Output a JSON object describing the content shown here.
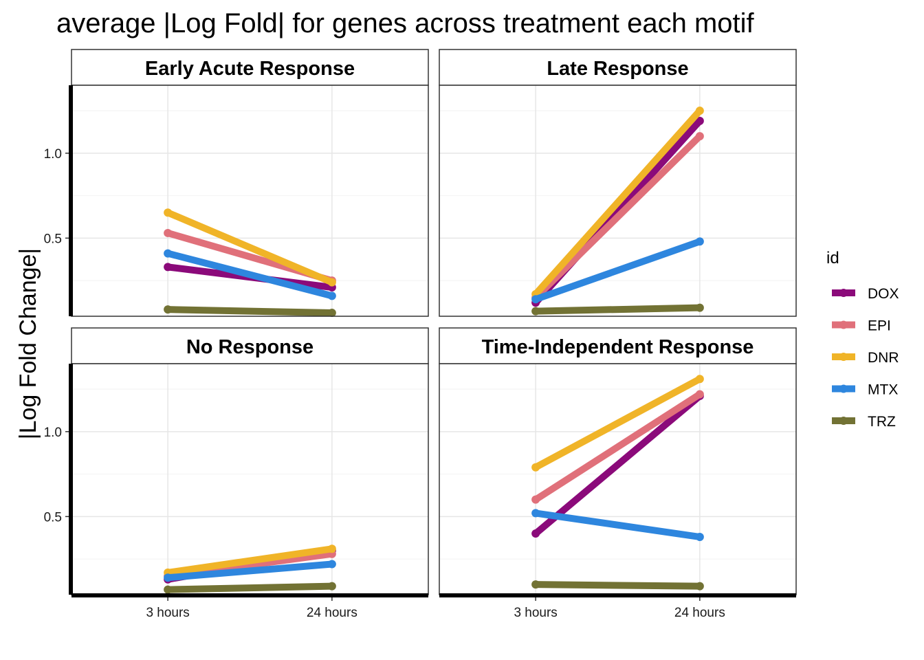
{
  "chart_data": {
    "type": "line",
    "title": "average |Log Fold| for genes across treatment each motif",
    "ylabel": "|Log Fold Change|",
    "xlabel": "",
    "categories": [
      "3 hours",
      "24 hours"
    ],
    "ylim": [
      0.04,
      1.4
    ],
    "yticks": [
      0.5,
      1.0
    ],
    "ytick_labels": [
      "0.5",
      "1.0"
    ],
    "grid": true,
    "legend": {
      "title": "id",
      "position": "right",
      "entries": [
        {
          "name": "DOX",
          "color": "#8B0A7A"
        },
        {
          "name": "EPI",
          "color": "#E0707A"
        },
        {
          "name": "DNR",
          "color": "#F0B428"
        },
        {
          "name": "MTX",
          "color": "#2E86DE"
        },
        {
          "name": "TRZ",
          "color": "#727234"
        }
      ]
    },
    "facets": [
      {
        "title": "Early Acute Response",
        "series": [
          {
            "name": "DOX",
            "values": [
              0.33,
              0.21
            ]
          },
          {
            "name": "EPI",
            "values": [
              0.53,
              0.25
            ]
          },
          {
            "name": "DNR",
            "values": [
              0.65,
              0.24
            ]
          },
          {
            "name": "MTX",
            "values": [
              0.41,
              0.16
            ]
          },
          {
            "name": "TRZ",
            "values": [
              0.08,
              0.06
            ]
          }
        ]
      },
      {
        "title": "Late Response",
        "series": [
          {
            "name": "DOX",
            "values": [
              0.12,
              1.19
            ]
          },
          {
            "name": "EPI",
            "values": [
              0.15,
              1.1
            ]
          },
          {
            "name": "DNR",
            "values": [
              0.17,
              1.25
            ]
          },
          {
            "name": "MTX",
            "values": [
              0.14,
              0.48
            ]
          },
          {
            "name": "TRZ",
            "values": [
              0.07,
              0.09
            ]
          }
        ]
      },
      {
        "title": "No Response",
        "series": [
          {
            "name": "DOX",
            "values": [
              0.13,
              0.3
            ]
          },
          {
            "name": "EPI",
            "values": [
              0.15,
              0.28
            ]
          },
          {
            "name": "DNR",
            "values": [
              0.17,
              0.31
            ]
          },
          {
            "name": "MTX",
            "values": [
              0.14,
              0.22
            ]
          },
          {
            "name": "TRZ",
            "values": [
              0.07,
              0.09
            ]
          }
        ]
      },
      {
        "title": "Time-Independent Response",
        "series": [
          {
            "name": "DOX",
            "values": [
              0.4,
              1.21
            ]
          },
          {
            "name": "EPI",
            "values": [
              0.6,
              1.22
            ]
          },
          {
            "name": "DNR",
            "values": [
              0.79,
              1.31
            ]
          },
          {
            "name": "MTX",
            "values": [
              0.52,
              0.38
            ]
          },
          {
            "name": "TRZ",
            "values": [
              0.1,
              0.09
            ]
          }
        ]
      }
    ]
  }
}
